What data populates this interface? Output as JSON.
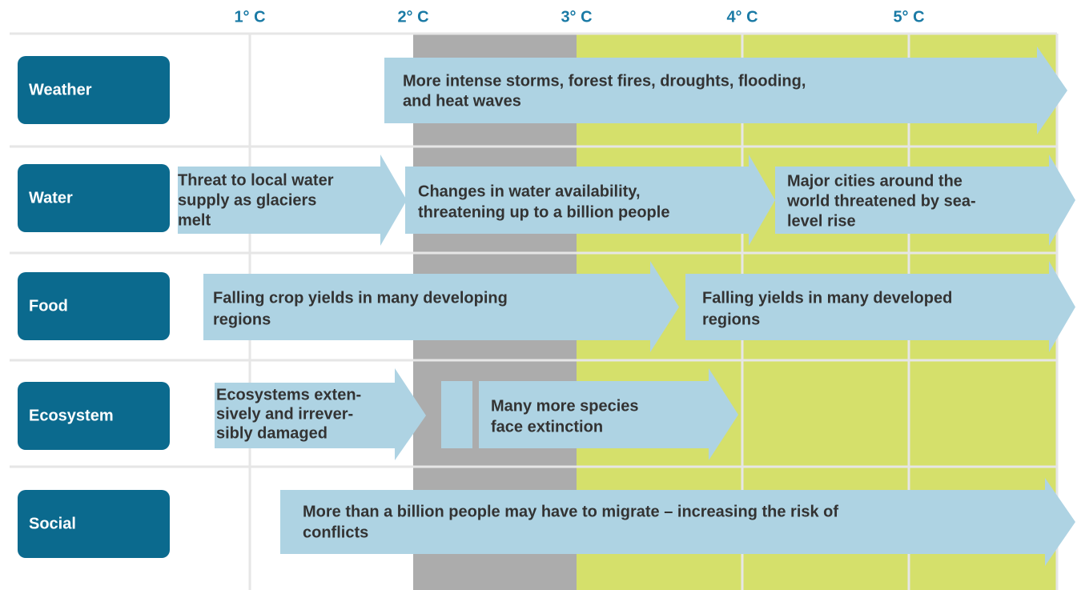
{
  "header": {
    "temperatures": [
      "1° C",
      "2° C",
      "3° C",
      "4° C",
      "5° C"
    ]
  },
  "rows": [
    {
      "label": "Weather",
      "arrows": [
        {
          "lines": [
            "More intense storms, forest fires, droughts, flooding,",
            "and heat waves"
          ]
        }
      ]
    },
    {
      "label": "Water",
      "arrows": [
        {
          "lines": [
            "Threat to local water",
            "supply as glaciers",
            "melt"
          ]
        },
        {
          "lines": [
            "Changes in water availability,",
            "threatening up to a billion people"
          ]
        },
        {
          "lines": [
            "Major cities around the",
            "world threatened by sea-",
            "level rise"
          ]
        }
      ]
    },
    {
      "label": "Food",
      "arrows": [
        {
          "lines": [
            "Falling crop yields in many developing",
            "regions"
          ]
        },
        {
          "lines": [
            "Falling yields in many developed",
            "regions"
          ]
        }
      ]
    },
    {
      "label": "Ecosystem",
      "arrows": [
        {
          "lines": [
            "Ecosystems exten-",
            "sively and irrever-",
            "sibly damaged"
          ]
        },
        {
          "lines": [
            "Many more species",
            "face extinction"
          ]
        }
      ]
    },
    {
      "label": "Social",
      "arrows": [
        {
          "lines": [
            "More than a billion people may have to migrate – increasing the risk of",
            "conflicts"
          ]
        }
      ]
    }
  ]
}
